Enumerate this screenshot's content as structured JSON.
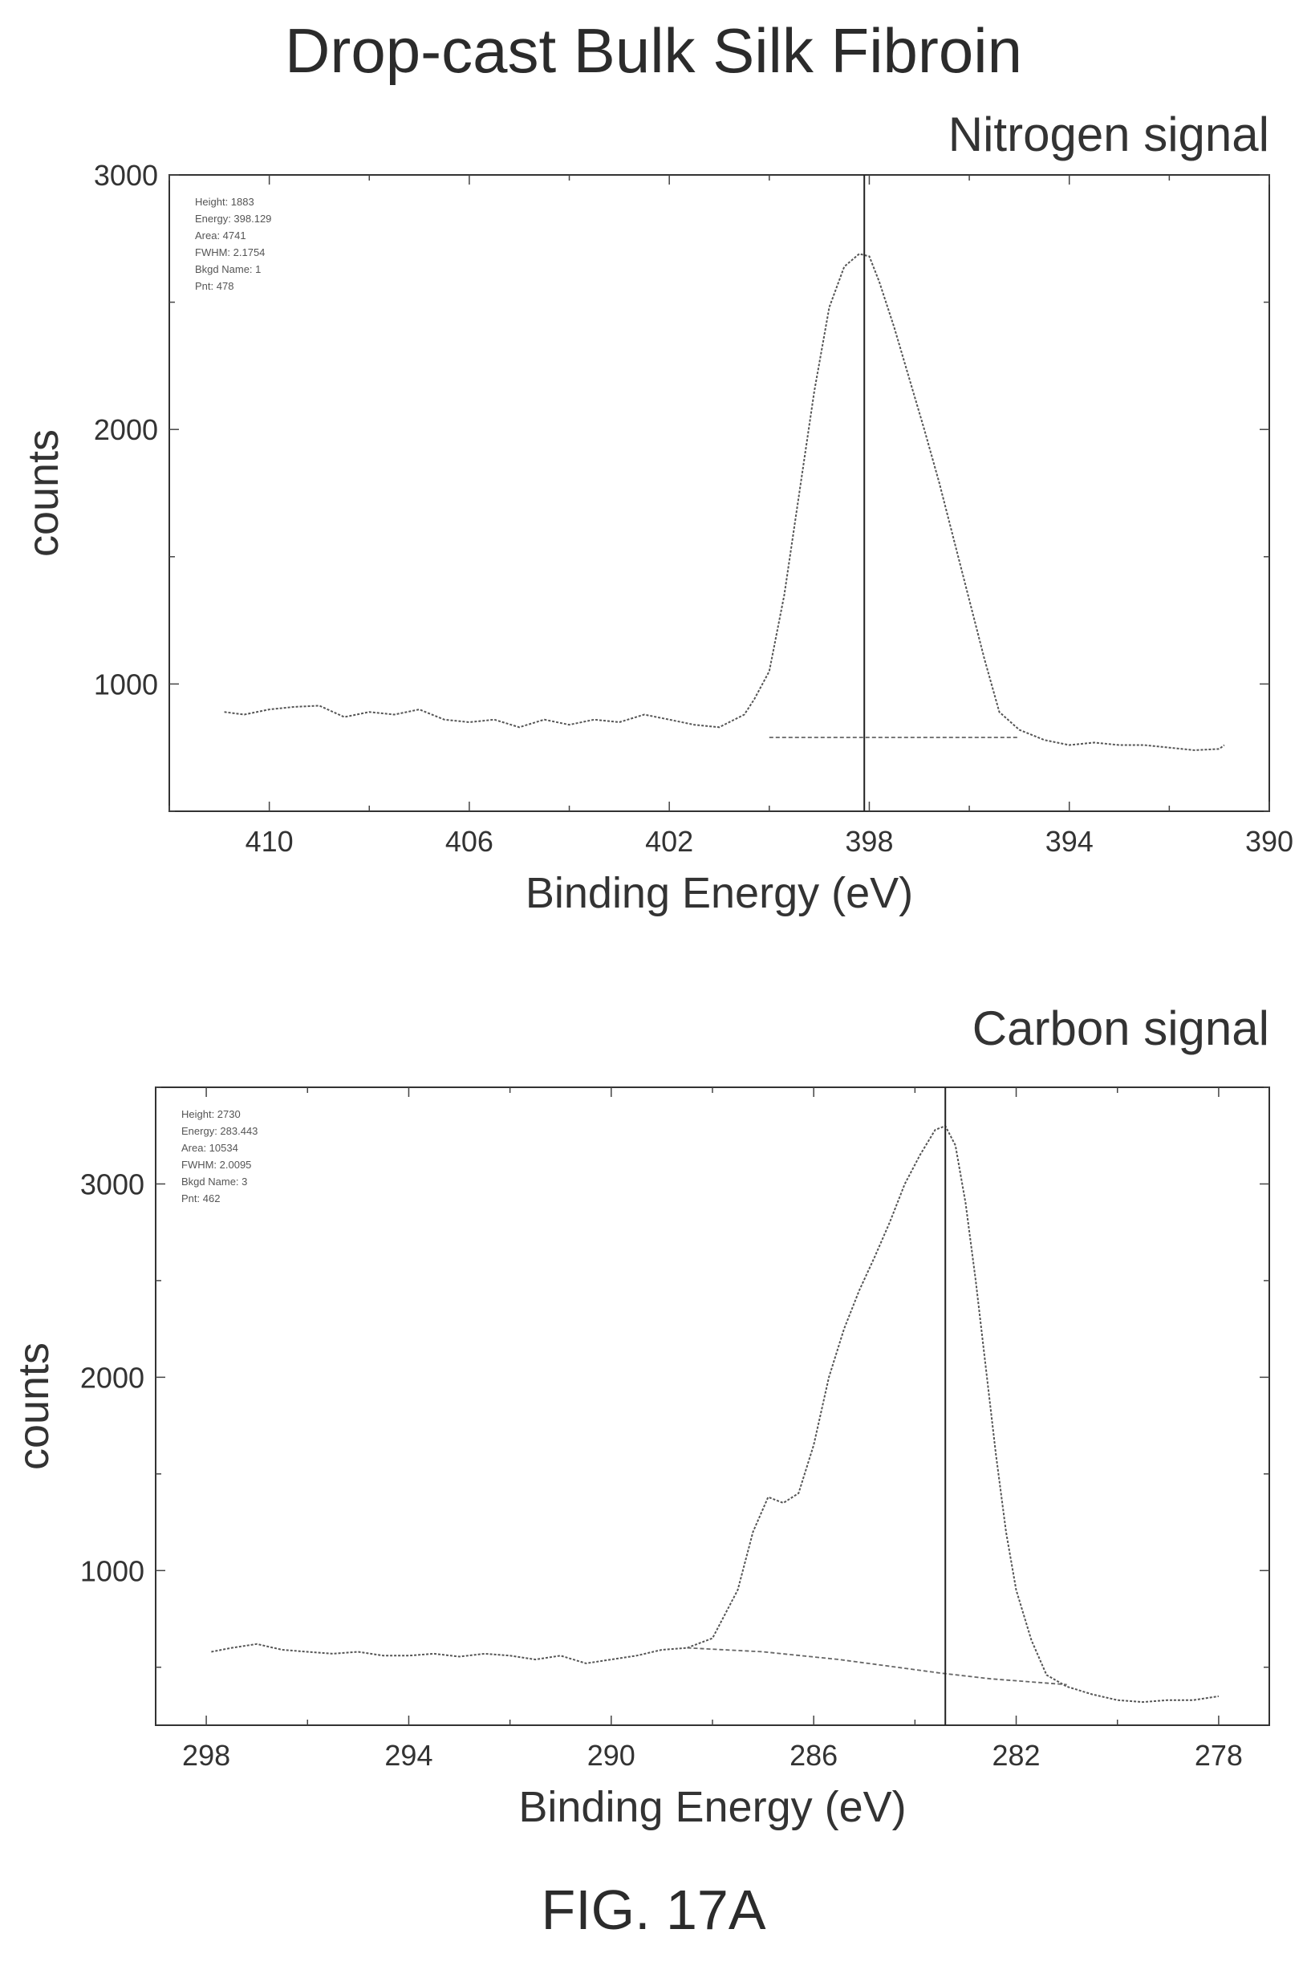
{
  "title": "Drop-cast Bulk Silk Fibroin",
  "figure_label": "FIG. 17A",
  "chart_data": [
    {
      "type": "line",
      "panel_title": "Nitrogen signal",
      "xlabel": "Binding Energy (eV)",
      "ylabel": "counts",
      "xlim": [
        412,
        390
      ],
      "ylim": [
        500,
        3000
      ],
      "x_ticks": [
        410,
        406,
        402,
        398,
        394,
        390
      ],
      "y_ticks": [
        1000,
        2000,
        3000
      ],
      "info_lines": [
        "Height: 1883",
        "Energy: 398.129",
        "Area: 4741",
        "FWHM: 2.1754",
        "Bkgd Name: 1",
        "Pnt: 478"
      ],
      "marker_x": 398.1,
      "series": [
        {
          "style": "spectrum",
          "x": [
            410.9,
            410.5,
            410.0,
            409.5,
            409.0,
            408.5,
            408.0,
            407.5,
            407.0,
            406.5,
            406.0,
            405.5,
            405.0,
            404.5,
            404.0,
            403.5,
            403.0,
            402.5,
            402.0,
            401.5,
            401.0,
            400.5,
            400.3,
            400.0,
            399.7,
            399.4,
            399.1,
            398.8,
            398.5,
            398.2,
            398.0,
            397.8,
            397.5,
            397.2,
            396.9,
            396.6,
            396.3,
            396.0,
            395.7,
            395.4,
            395.0,
            394.5,
            394.0,
            393.5,
            393.0,
            392.5,
            392.0,
            391.5,
            391.0,
            390.9
          ],
          "y": [
            890,
            880,
            900,
            910,
            915,
            870,
            890,
            880,
            900,
            860,
            850,
            860,
            830,
            860,
            840,
            860,
            850,
            880,
            860,
            840,
            830,
            880,
            940,
            1050,
            1350,
            1750,
            2150,
            2480,
            2640,
            2690,
            2680,
            2580,
            2400,
            2200,
            2000,
            1790,
            1560,
            1330,
            1100,
            890,
            820,
            780,
            760,
            770,
            760,
            760,
            750,
            740,
            745,
            760
          ]
        },
        {
          "style": "background",
          "x": [
            400.0,
            395.0
          ],
          "y": [
            790,
            790
          ]
        }
      ]
    },
    {
      "type": "line",
      "panel_title": "Carbon signal",
      "xlabel": "Binding Energy (eV)",
      "ylabel": "counts",
      "xlim": [
        299,
        277
      ],
      "ylim": [
        200,
        3500
      ],
      "x_ticks": [
        298,
        294,
        290,
        286,
        282,
        278
      ],
      "y_ticks": [
        1000,
        2000,
        3000
      ],
      "info_lines": [
        "Height: 2730",
        "Energy: 283.443",
        "Area: 10534",
        "FWHM: 2.0095",
        "Bkgd Name: 3",
        "Pnt: 462"
      ],
      "marker_x": 283.4,
      "series": [
        {
          "style": "spectrum",
          "x": [
            297.9,
            297.5,
            297.0,
            296.5,
            296.0,
            295.5,
            295.0,
            294.5,
            294.0,
            293.5,
            293.0,
            292.5,
            292.0,
            291.5,
            291.0,
            290.5,
            290.0,
            289.5,
            289.0,
            288.5,
            288.0,
            287.5,
            287.2,
            286.9,
            286.6,
            286.3,
            286.0,
            285.7,
            285.4,
            285.1,
            284.8,
            284.5,
            284.2,
            283.9,
            283.6,
            283.4,
            283.2,
            283.0,
            282.8,
            282.6,
            282.4,
            282.2,
            282.0,
            281.7,
            281.4,
            281.0,
            280.5,
            280.0,
            279.5,
            279.0,
            278.5,
            278.0
          ],
          "y": [
            580,
            600,
            620,
            590,
            580,
            570,
            580,
            560,
            560,
            570,
            555,
            570,
            560,
            540,
            560,
            520,
            540,
            560,
            590,
            600,
            650,
            900,
            1200,
            1380,
            1350,
            1400,
            1650,
            2000,
            2250,
            2450,
            2620,
            2800,
            3000,
            3150,
            3280,
            3300,
            3200,
            2900,
            2500,
            2050,
            1600,
            1200,
            900,
            640,
            460,
            400,
            360,
            330,
            320,
            330,
            330,
            350
          ]
        },
        {
          "style": "background",
          "x": [
            288.5,
            287.0,
            285.5,
            284.5,
            283.5,
            282.5,
            281.5,
            281.0
          ],
          "y": [
            600,
            580,
            540,
            505,
            470,
            440,
            420,
            410
          ]
        }
      ]
    }
  ]
}
